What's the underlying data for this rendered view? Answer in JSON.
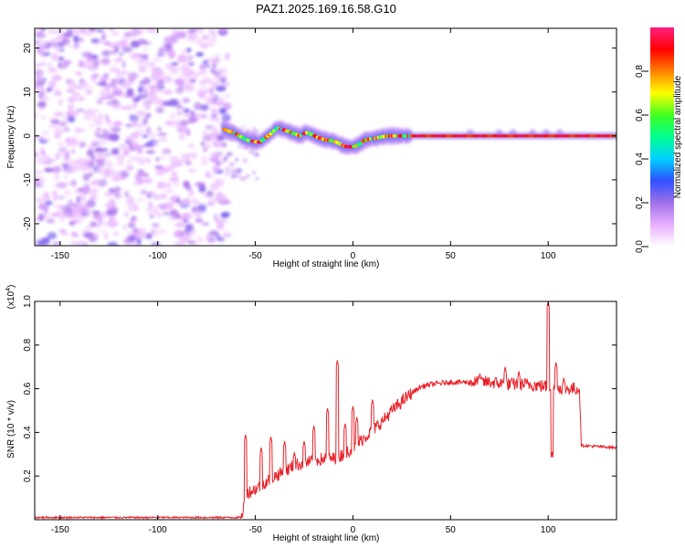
{
  "title": "PAZ1.2025.169.16.58.G10",
  "chart_data": [
    {
      "type": "heatmap",
      "xlabel": "Height of straight line (km)",
      "ylabel": "Frequency (Hz)",
      "xlim": [
        -163,
        135
      ],
      "ylim": [
        -25,
        24.5
      ],
      "xticks": [
        -150,
        -100,
        -50,
        0,
        50,
        100
      ],
      "yticks": [
        -20,
        -10,
        0,
        10,
        20
      ],
      "colorbar": {
        "label": "Normalized spectral amplitude",
        "range": [
          0,
          1
        ],
        "ticks": [
          0.0,
          0.2,
          0.4,
          0.6,
          0.8
        ],
        "stops": [
          "#ffffff",
          "#e8b0ff",
          "#a070e8",
          "#3050ff",
          "#00d0ff",
          "#00ff90",
          "#40ff20",
          "#ffff00",
          "#ff8000",
          "#ff0000",
          "#ff2080"
        ]
      },
      "noise_region_x": [
        -163,
        -66
      ],
      "ridge": [
        [
          -66,
          1.5
        ],
        [
          -63,
          1.0
        ],
        [
          -60,
          0.5
        ],
        [
          -57,
          -0.3
        ],
        [
          -54,
          -1.0
        ],
        [
          -51,
          -1.2
        ],
        [
          -48,
          -1.5
        ],
        [
          -45,
          -0.5
        ],
        [
          -42,
          0.5
        ],
        [
          -39,
          1.8
        ],
        [
          -36,
          1.5
        ],
        [
          -33,
          1.0
        ],
        [
          -30,
          0.5
        ],
        [
          -27,
          0.0
        ],
        [
          -24,
          0.8
        ],
        [
          -21,
          0.3
        ],
        [
          -18,
          -0.3
        ],
        [
          -15,
          -0.8
        ],
        [
          -12,
          -1.0
        ],
        [
          -9,
          -1.3
        ],
        [
          -6,
          -2.0
        ],
        [
          -3,
          -2.5
        ],
        [
          0,
          -2.5
        ],
        [
          3,
          -2.0
        ],
        [
          6,
          -1.0
        ],
        [
          9,
          -0.7
        ],
        [
          12,
          -0.5
        ],
        [
          15,
          -0.2
        ],
        [
          18,
          0.0
        ],
        [
          21,
          0.0
        ],
        [
          25,
          0.0
        ],
        [
          30,
          0.0
        ],
        [
          35,
          0.0
        ],
        [
          135,
          0.0
        ]
      ]
    },
    {
      "type": "line",
      "xlabel": "Height of straight line (km)",
      "ylabel": "SNR (10 * v/v)",
      "yscale_label": "(x10",
      "yscale_exp": "4",
      "xlim": [
        -163,
        135
      ],
      "ylim": [
        0,
        1.0
      ],
      "xticks": [
        -150,
        -100,
        -50,
        0,
        50,
        100
      ],
      "yticks": [
        0.2,
        0.4,
        0.6,
        0.8,
        1.0
      ],
      "ytick_labels": [
        "0.2",
        "0.4",
        "0.6",
        "0.8",
        "1.0"
      ],
      "color": "#e8222a",
      "baseline": [
        [
          -163,
          0.01
        ],
        [
          -57,
          0.01
        ],
        [
          -55,
          0.12
        ],
        [
          -50,
          0.14
        ],
        [
          -45,
          0.17
        ],
        [
          -40,
          0.2
        ],
        [
          -35,
          0.22
        ],
        [
          -30,
          0.25
        ],
        [
          -25,
          0.26
        ],
        [
          -20,
          0.27
        ],
        [
          -15,
          0.28
        ],
        [
          -10,
          0.28
        ],
        [
          -5,
          0.3
        ],
        [
          0,
          0.33
        ],
        [
          5,
          0.37
        ],
        [
          10,
          0.41
        ],
        [
          15,
          0.45
        ],
        [
          20,
          0.5
        ],
        [
          25,
          0.54
        ],
        [
          30,
          0.58
        ],
        [
          35,
          0.61
        ],
        [
          40,
          0.62
        ],
        [
          50,
          0.63
        ],
        [
          60,
          0.63
        ],
        [
          70,
          0.63
        ],
        [
          80,
          0.62
        ],
        [
          90,
          0.62
        ],
        [
          100,
          0.61
        ],
        [
          110,
          0.6
        ],
        [
          116,
          0.6
        ],
        [
          117,
          0.34
        ],
        [
          135,
          0.33
        ]
      ],
      "spikes": [
        [
          -55,
          0.39
        ],
        [
          -47,
          0.33
        ],
        [
          -42,
          0.38
        ],
        [
          -35,
          0.36
        ],
        [
          -30,
          0.31
        ],
        [
          -25,
          0.36
        ],
        [
          -20,
          0.43
        ],
        [
          -13,
          0.51
        ],
        [
          -8,
          0.73
        ],
        [
          -4,
          0.44
        ],
        [
          0,
          0.52
        ],
        [
          2,
          0.47
        ],
        [
          10,
          0.55
        ],
        [
          65,
          0.67
        ],
        [
          78,
          0.7
        ],
        [
          85,
          0.68
        ],
        [
          100,
          1.0
        ],
        [
          102,
          0.31
        ],
        [
          104,
          0.72
        ],
        [
          108,
          0.65
        ]
      ]
    }
  ]
}
